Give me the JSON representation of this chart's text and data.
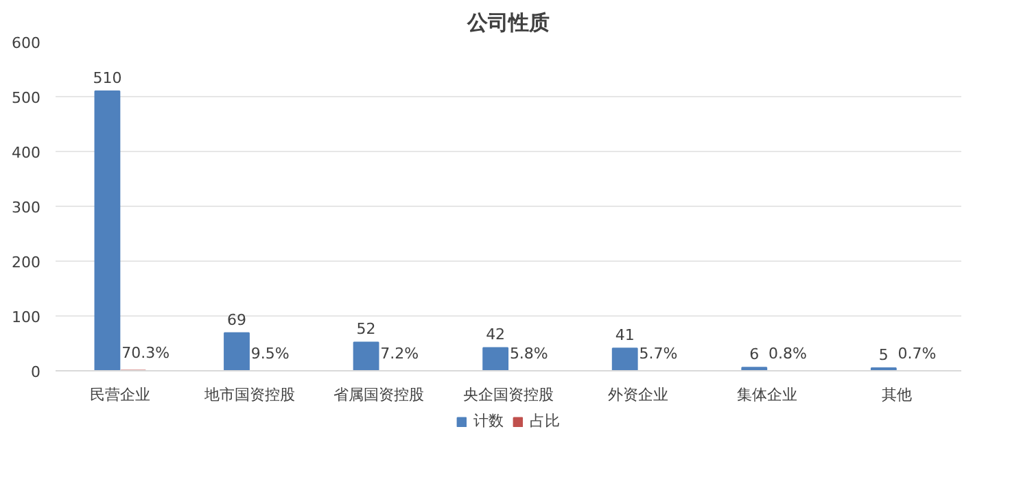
{
  "chart_data": {
    "type": "bar",
    "title": "公司性质",
    "categories": [
      "民营企业",
      "地市国资控股",
      "省属国资控股",
      "央企国资控股",
      "外资企业",
      "集体企业",
      "其他"
    ],
    "series": [
      {
        "name": "计数",
        "color": "#4f81bd",
        "values": [
          510,
          69,
          52,
          42,
          41,
          6,
          5
        ],
        "value_labels": [
          "510",
          "69",
          "52",
          "42",
          "41",
          "6",
          "5"
        ]
      },
      {
        "name": "占比",
        "color": "#c0504d",
        "values": [
          0.703,
          0.095,
          0.072,
          0.058,
          0.057,
          0.008,
          0.007
        ],
        "value_labels": [
          "70.3%",
          "9.5%",
          "7.2%",
          "5.8%",
          "5.7%",
          "0.8%",
          "0.7%"
        ]
      }
    ],
    "ylim": [
      0,
      600
    ],
    "yticks": [
      0,
      100,
      200,
      300,
      400,
      500,
      600
    ],
    "grid": "y",
    "legend": "bottom"
  }
}
